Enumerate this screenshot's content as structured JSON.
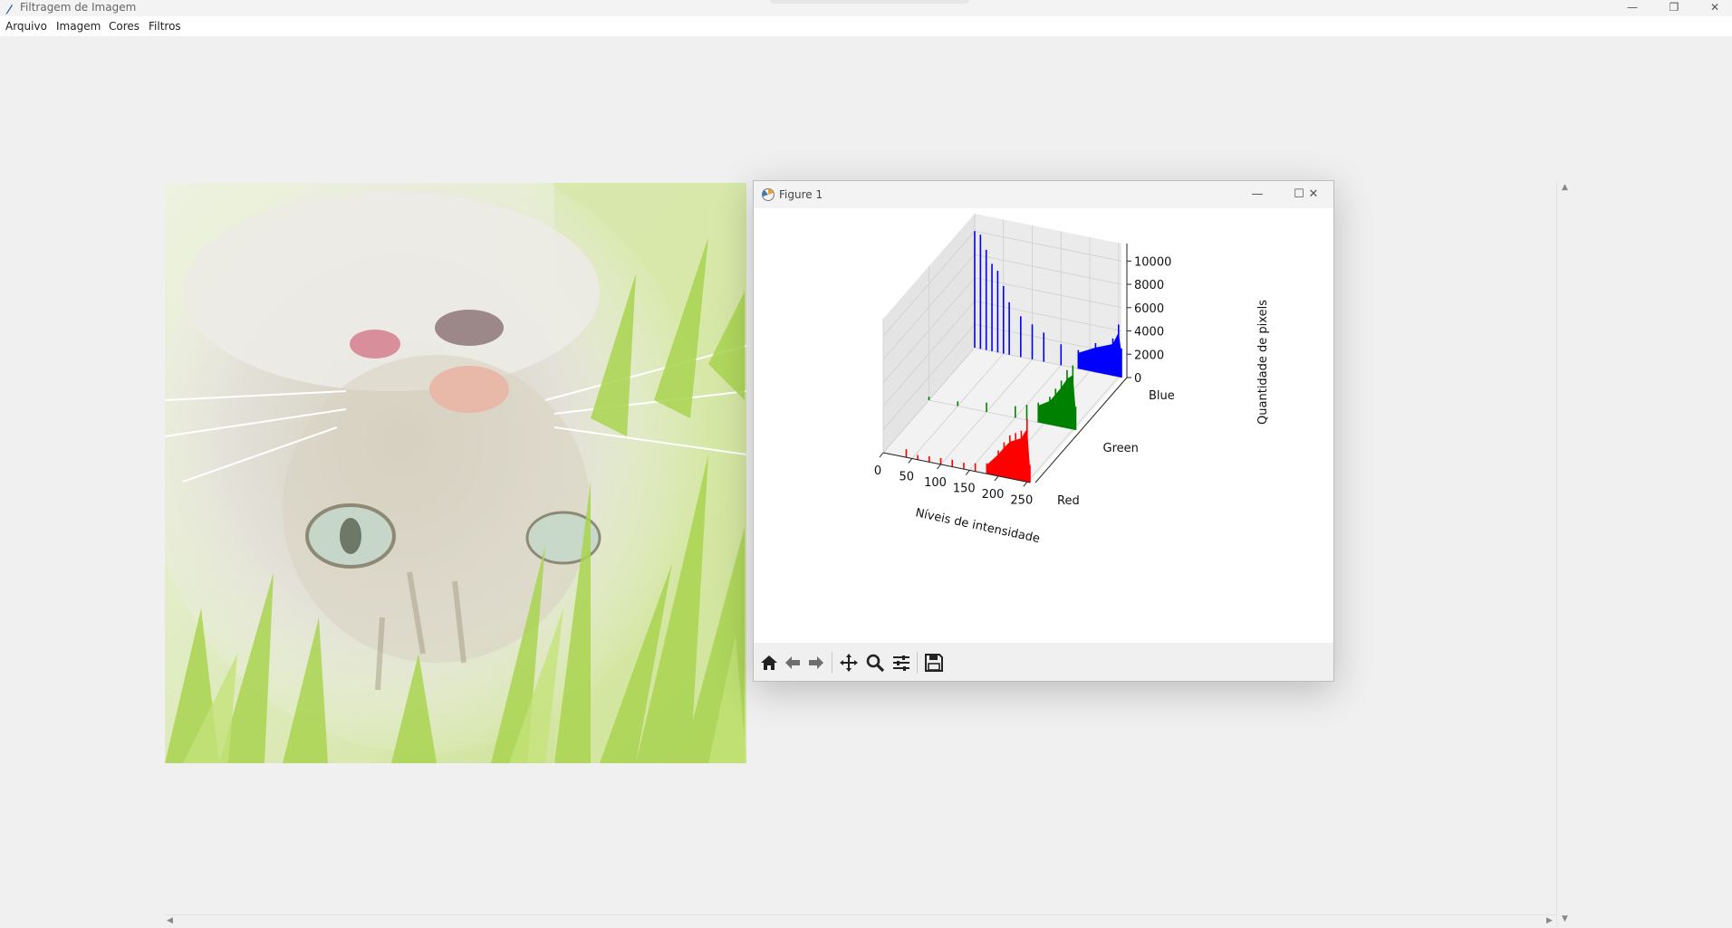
{
  "app": {
    "title": "Filtragem de Imagem",
    "window_controls": {
      "minimize": "—",
      "maximize": "❐",
      "close": "✕"
    }
  },
  "menu": {
    "items": [
      {
        "label": "Arquivo"
      },
      {
        "label": "Imagem"
      },
      {
        "label": "Cores"
      },
      {
        "label": "Filtros"
      }
    ]
  },
  "canvas": {
    "image_subject": "cat lying in grass",
    "scroll_arrows": {
      "up": "▲",
      "down": "▼",
      "left": "◀",
      "right": "▶"
    }
  },
  "figure": {
    "title": "Figure 1",
    "window_controls": {
      "minimize": "—",
      "maximize": "☐",
      "close": "✕"
    },
    "toolbar": [
      "home-icon",
      "back-icon",
      "forward-icon",
      "pan-icon",
      "zoom-icon",
      "configure-icon",
      "save-icon"
    ]
  },
  "chart_data": {
    "type": "bar3d",
    "xlabel": "Níveis de intensidade",
    "ylabel": "",
    "zlabel": "Quantidade de pixels",
    "x_ticks": [
      "0",
      "50",
      "100",
      "150",
      "200",
      "250"
    ],
    "y_ticks": [
      "Red",
      "Green",
      "Blue"
    ],
    "z_ticks": [
      "0",
      "2000",
      "4000",
      "6000",
      "8000",
      "10000"
    ],
    "xlim": [
      0,
      255
    ],
    "zlim": [
      0,
      11500
    ],
    "grid": true,
    "series": [
      {
        "name": "Red",
        "color": "#ff0000",
        "bins": [
          [
            40,
            700
          ],
          [
            60,
            400
          ],
          [
            80,
            500
          ],
          [
            100,
            550
          ],
          [
            120,
            600
          ],
          [
            140,
            550
          ],
          [
            160,
            700
          ],
          [
            180,
            900
          ],
          [
            200,
            2200
          ],
          [
            210,
            3000
          ],
          [
            220,
            3700
          ],
          [
            230,
            4000
          ],
          [
            240,
            4300
          ],
          [
            250,
            5400
          ],
          [
            255,
            1500
          ]
        ]
      },
      {
        "name": "Green",
        "color": "#008000",
        "bins": [
          [
            0,
            300
          ],
          [
            50,
            400
          ],
          [
            100,
            800
          ],
          [
            150,
            1000
          ],
          [
            170,
            1300
          ],
          [
            190,
            1700
          ],
          [
            210,
            2400
          ],
          [
            220,
            3200
          ],
          [
            230,
            4000
          ],
          [
            240,
            5000
          ],
          [
            250,
            5500
          ],
          [
            255,
            2000
          ]
        ]
      },
      {
        "name": "Blue",
        "color": "#0000ff",
        "bins": [
          [
            0,
            10000
          ],
          [
            10,
            9800
          ],
          [
            20,
            8600
          ],
          [
            30,
            7500
          ],
          [
            40,
            7000
          ],
          [
            50,
            5800
          ],
          [
            60,
            4500
          ],
          [
            80,
            3500
          ],
          [
            100,
            3000
          ],
          [
            120,
            2500
          ],
          [
            150,
            1800
          ],
          [
            180,
            1600
          ],
          [
            210,
            2500
          ],
          [
            240,
            3200
          ],
          [
            250,
            4500
          ],
          [
            255,
            2500
          ]
        ]
      }
    ]
  }
}
